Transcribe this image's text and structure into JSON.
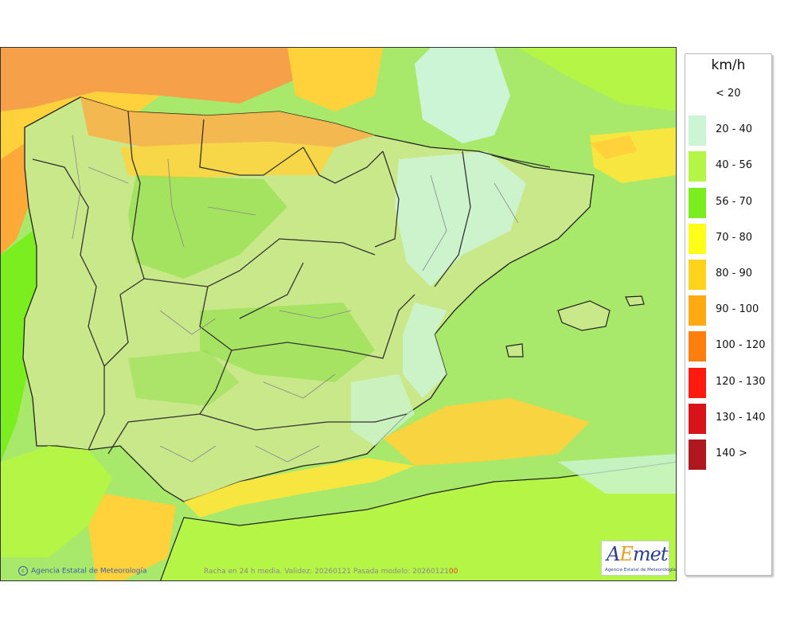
{
  "map": {
    "credit": "Agencia Estatal de Meteorología",
    "info_prefix": "Racha en 24 h media. Validez: 20260121 Pasada modelo: 20260121",
    "info_suffix": "00",
    "logo_mark_a": "A",
    "logo_mark_e": "E",
    "logo_mark_rest": "met",
    "logo_sub": "Agencia Estatal de Meteorología"
  },
  "legend": {
    "title": "km/h",
    "items": [
      {
        "label": "< 20",
        "color": ""
      },
      {
        "label": "20 - 40",
        "color": "#ccf5d6"
      },
      {
        "label": "40 - 56",
        "color": "#b5f545"
      },
      {
        "label": "56 - 70",
        "color": "#7aee1e"
      },
      {
        "label": "70 - 80",
        "color": "#ffff1a"
      },
      {
        "label": "80 - 90",
        "color": "#ffd21c"
      },
      {
        "label": "90 - 100",
        "color": "#ffaa12"
      },
      {
        "label": "100 - 120",
        "color": "#ff7f0e"
      },
      {
        "label": "120 - 130",
        "color": "#ff1a10"
      },
      {
        "label": "130 - 140",
        "color": "#d8141a"
      },
      {
        "label": "140 >",
        "color": "#b01820"
      }
    ]
  }
}
